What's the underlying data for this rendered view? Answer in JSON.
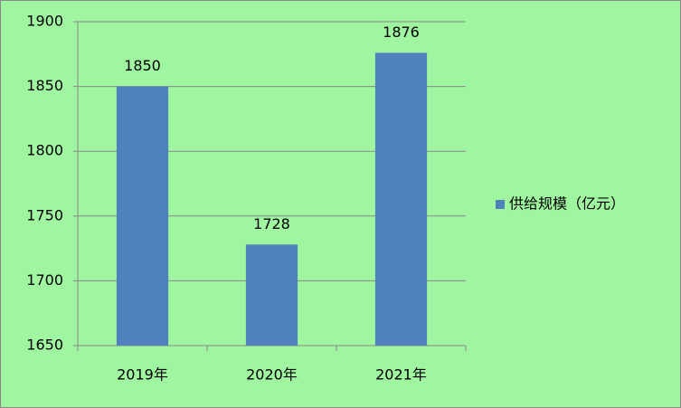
{
  "chart_data": {
    "type": "bar",
    "categories": [
      "2019年",
      "2020年",
      "2021年"
    ],
    "series": [
      {
        "name": "供给规模（亿元）",
        "color": "#4f81bd",
        "values": [
          1850,
          1728,
          1876
        ]
      }
    ],
    "ylim": [
      1650,
      1900
    ],
    "yticks": [
      1650,
      1700,
      1750,
      1800,
      1850,
      1900
    ],
    "grid": true,
    "legend": "right",
    "data_labels": true
  }
}
